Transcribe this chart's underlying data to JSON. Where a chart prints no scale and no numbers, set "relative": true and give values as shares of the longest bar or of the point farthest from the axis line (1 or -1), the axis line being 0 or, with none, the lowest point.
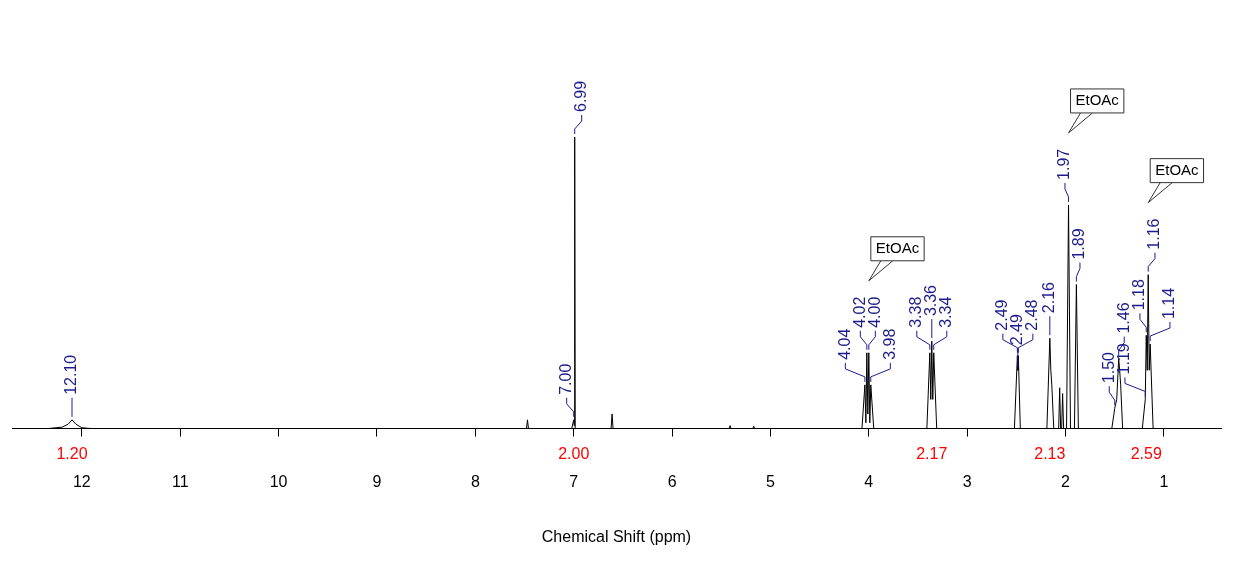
{
  "chart_data": {
    "type": "line",
    "xlabel": "Chemical Shift (ppm)",
    "relative": true,
    "grid": false,
    "legend": false,
    "color": "#000000",
    "xlim": [
      12.71,
      0.42
    ],
    "xticks": [
      12,
      11,
      10,
      9,
      8,
      7,
      6,
      5,
      4,
      3,
      2,
      1
    ],
    "x": [
      12.71,
      12.35,
      12.2,
      12.14,
      12.1,
      12.06,
      12.0,
      11.9,
      7.55,
      7.48,
      7.47,
      7.46,
      7.02,
      7.0,
      6.995,
      6.99,
      6.985,
      6.62,
      6.61,
      6.6,
      5.42,
      5.41,
      5.4,
      5.18,
      5.17,
      5.16,
      4.07,
      4.04,
      4.03,
      4.02,
      4.01,
      4.0,
      3.99,
      3.98,
      3.95,
      3.41,
      3.38,
      3.37,
      3.36,
      3.35,
      3.34,
      3.31,
      2.52,
      2.49,
      2.485,
      2.48,
      2.46,
      2.19,
      2.16,
      2.15,
      2.14,
      2.12,
      2.07,
      2.06,
      2.05,
      2.04,
      2.03,
      2.02,
      1.99,
      1.97,
      1.95,
      1.91,
      1.89,
      1.87,
      1.53,
      1.5,
      1.48,
      1.46,
      1.45,
      1.44,
      1.42,
      1.22,
      1.19,
      1.18,
      1.17,
      1.16,
      1.15,
      1.14,
      1.11,
      0.42
    ],
    "values": [
      0,
      0,
      0.005,
      0.015,
      0.03,
      0.015,
      0.003,
      0,
      0,
      0,
      0.03,
      0,
      0,
      0.03,
      0.01,
      1,
      0,
      0,
      0.05,
      0,
      0,
      0.01,
      0,
      0,
      0.008,
      0,
      0,
      0.15,
      0.02,
      0.26,
      0.05,
      0.26,
      0.02,
      0.15,
      0,
      0,
      0.26,
      0.1,
      0.3,
      0.1,
      0.26,
      0,
      0,
      0.25,
      0.2,
      0.25,
      0,
      0,
      0.31,
      0.2,
      0.15,
      0,
      0,
      0.14,
      0,
      0,
      0.12,
      0,
      0,
      0.767,
      0,
      0,
      0.494,
      0,
      0,
      0.07,
      0.1,
      0.24,
      0.2,
      0.15,
      0,
      0,
      0.1,
      0.32,
      0.2,
      0.528,
      0.2,
      0.29,
      0,
      0
    ],
    "annotations": [
      {
        "text": "12.10",
        "x": 12.1,
        "y": 0.03
      },
      {
        "text": "7.00",
        "x": 7.0,
        "y": 0.03
      },
      {
        "text": "6.99",
        "x": 6.99,
        "y": 1
      },
      {
        "text": "4.04",
        "x": 4.04,
        "y": 0.15
      },
      {
        "text": "4.02",
        "x": 4.02,
        "y": 0.26
      },
      {
        "text": "4.00",
        "x": 4.0,
        "y": 0.26
      },
      {
        "text": "3.98",
        "x": 3.98,
        "y": 0.15
      },
      {
        "text": "3.38",
        "x": 3.38,
        "y": 0.26
      },
      {
        "text": "3.36",
        "x": 3.36,
        "y": 0.3
      },
      {
        "text": "3.34",
        "x": 3.34,
        "y": 0.26
      },
      {
        "text": "2.49",
        "x": 2.49,
        "y": 0.25
      },
      {
        "text": "2.49",
        "x": 2.485,
        "y": 0.2
      },
      {
        "text": "2.48",
        "x": 2.48,
        "y": 0.25
      },
      {
        "text": "2.16",
        "x": 2.16,
        "y": 0.31
      },
      {
        "text": "1.97",
        "x": 1.97,
        "y": 0.767
      },
      {
        "text": "1.89",
        "x": 1.89,
        "y": 0.494
      },
      {
        "text": "1.50",
        "x": 1.5,
        "y": 0.07
      },
      {
        "text": "1.46",
        "x": 1.46,
        "y": 0.24
      },
      {
        "text": "1.19",
        "x": 1.19,
        "y": 0.1
      },
      {
        "text": "1.18",
        "x": 1.18,
        "y": 0.32
      },
      {
        "text": "1.16",
        "x": 1.16,
        "y": 0.528
      },
      {
        "text": "1.14",
        "x": 1.14,
        "y": 0.29
      },
      "1.20",
      "2.00",
      "2.17",
      "2.13",
      "2.59",
      "EtOAc",
      "EtOAc",
      "EtOAc"
    ]
  }
}
